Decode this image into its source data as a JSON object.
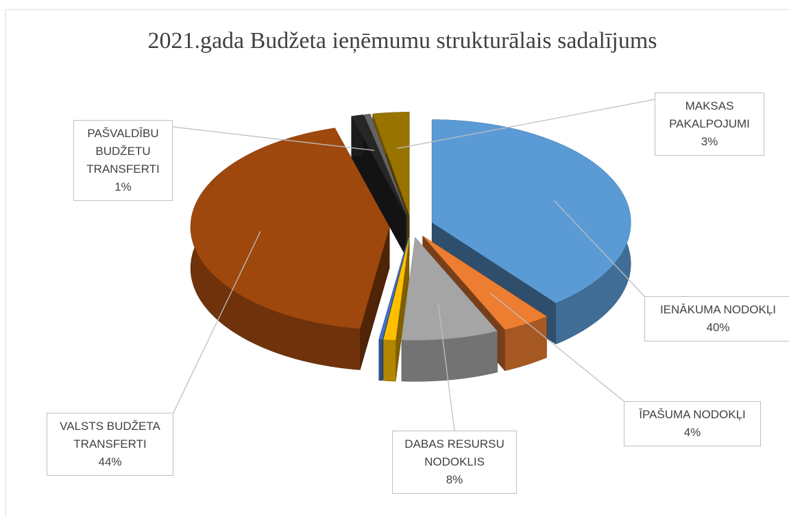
{
  "chart_data": {
    "type": "pie3d",
    "title": "2021.gada Budžeta ieņēmumu strukturālais sadalījums",
    "categories": [
      "IENĀKUMA NODOKĻI",
      "ĪPAŠUMA NODOKĻI",
      "DABAS RESURSU NODOKLIS",
      null,
      null,
      "VALSTS BUDŽETA TRANSFERTI",
      "PAŠVALDĪBU BUDŽETU TRANSFERTI",
      null,
      "MAKSAS PAKALPOJUMI"
    ],
    "values": [
      40,
      4,
      8,
      1,
      0.3,
      44,
      1,
      0.5,
      3
    ],
    "value_labels": [
      "40%",
      "4%",
      "8%",
      null,
      null,
      "44%",
      "1%",
      null,
      "3%"
    ],
    "colors": [
      "#5b9bd5",
      "#ed7d31",
      "#a5a5a5",
      "#ffc000",
      "#4472c4",
      "#9e480e",
      "#262626",
      "#636363",
      "#997300"
    ]
  }
}
